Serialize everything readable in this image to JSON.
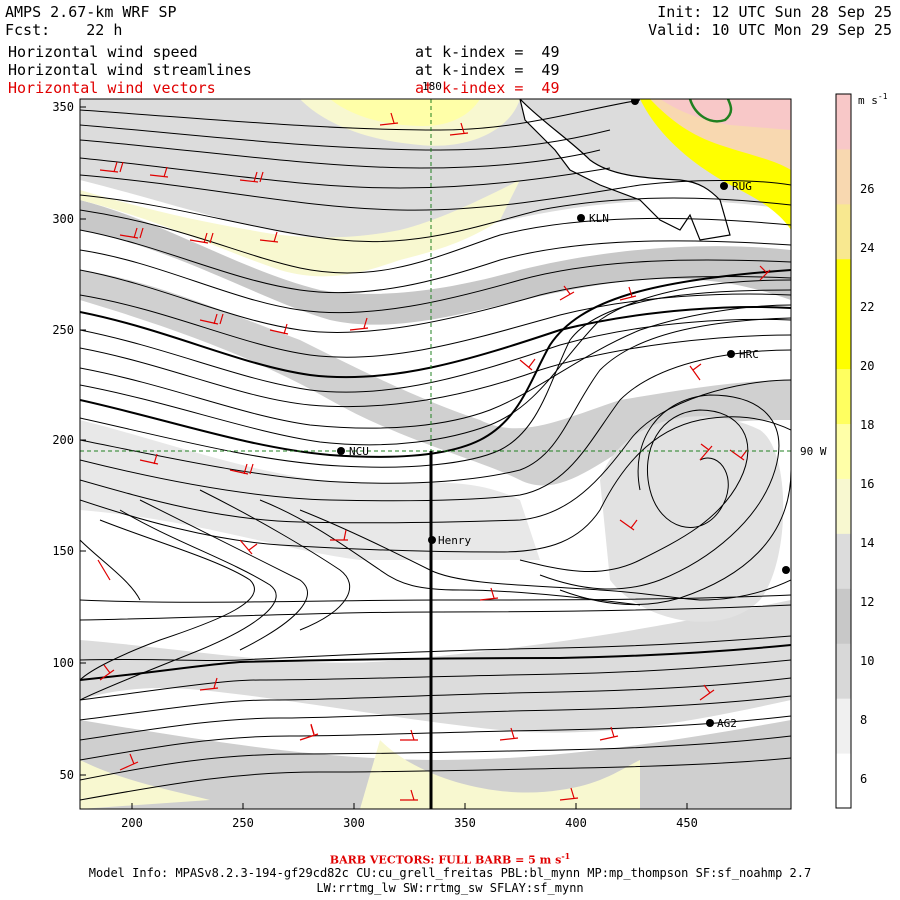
{
  "header": {
    "model": "AMPS 2.67-km WRF SP",
    "fcst_label": "Fcst:",
    "fcst_value": "22 h",
    "init": "Init: 12 UTC Sun 28 Sep 25",
    "valid": "Valid: 10 UTC Mon 29 Sep 25",
    "fields": [
      {
        "name": "Horizontal wind speed",
        "level": "at k-index =  49",
        "color": "#000000"
      },
      {
        "name": "Horizontal wind streamlines",
        "level": "at k-index =  49",
        "color": "#000000"
      },
      {
        "name": "Horizontal wind vectors",
        "level": "at k-index =  49",
        "color": "#e00000"
      }
    ]
  },
  "map": {
    "x_ticks": [
      "200",
      "250",
      "300",
      "350",
      "400",
      "450"
    ],
    "y_ticks": [
      "50",
      "100",
      "150",
      "200",
      "250",
      "300",
      "350"
    ],
    "grid_labels": {
      "meridian": "180",
      "parallel": "90 W"
    },
    "stations": [
      {
        "id": "NCU"
      },
      {
        "id": "KLN"
      },
      {
        "id": "RUG"
      },
      {
        "id": "HRC"
      },
      {
        "id": "Henry"
      },
      {
        "id": "AG2"
      },
      {
        "id": ""
      },
      {
        "id": ""
      }
    ]
  },
  "colorbar": {
    "unit": "m s",
    "unit_exp": "-1",
    "labels": [
      "26",
      "24",
      "22",
      "20",
      "18",
      "16",
      "14",
      "12",
      "10",
      "8",
      "6"
    ],
    "colors": [
      "#ffffff",
      "#f0f0f0",
      "#d8d8d8",
      "#c8c8c8",
      "#dcdcdc",
      "#f8f8d0",
      "#ffffa8",
      "#ffff60",
      "#ffff00",
      "#ffff00",
      "#f8e890",
      "#f8d8b0",
      "#f8c8c8"
    ]
  },
  "footer": {
    "barb_note": "BARB VECTORS: FULL BARB = 5 m s",
    "barb_exp": "-1",
    "model_info": "Model Info: MPASv8.2.3-194-gf29cd82c CU:cu_grell_freitas PBL:bl_mynn MP:mp_thompson SF:sf_noahmp 2.7",
    "model_info2": "LW:rrtmg_lw SW:rrtmg_sw SFLAY:sf_mynn"
  },
  "colors": {
    "streamline": "#000000",
    "barb": "#e00000",
    "coast": "#000000",
    "gridline": "#208020",
    "transect": "#000000"
  }
}
